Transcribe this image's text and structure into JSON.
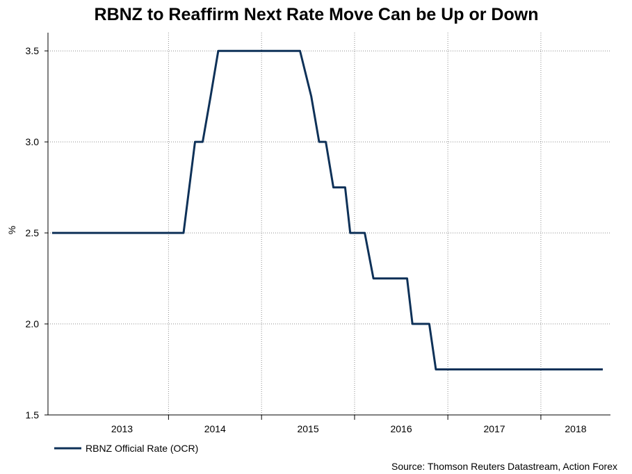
{
  "chart_data": {
    "type": "line",
    "title": "RBNZ to Reaffirm Next Rate Move Can be Up or Down",
    "ylabel": "%",
    "xlabel": "",
    "ylim": [
      1.5,
      3.6
    ],
    "xlim": [
      "2012-09-15",
      "2018-10-01"
    ],
    "y_ticks": [
      "1.5",
      "2.0",
      "2.5",
      "3.0",
      "3.5"
    ],
    "x_ticks": [
      "2013",
      "2014",
      "2015",
      "2016",
      "2017",
      "2018"
    ],
    "grid": true,
    "legend_position": "bottom-left",
    "source": "Source: Thomson Reuters Datastream, Action Forex",
    "series": [
      {
        "name": "RBNZ Official Rate (OCR)",
        "color": "#0e3158",
        "points": [
          [
            "2012-10-01",
            2.5
          ],
          [
            "2014-03-01",
            2.5
          ],
          [
            "2014-04-15",
            3.0
          ],
          [
            "2014-05-15",
            3.0
          ],
          [
            "2014-06-15",
            3.25
          ],
          [
            "2014-07-15",
            3.5
          ],
          [
            "2015-06-01",
            3.5
          ],
          [
            "2015-07-15",
            3.25
          ],
          [
            "2015-08-15",
            3.0
          ],
          [
            "2015-09-10",
            3.0
          ],
          [
            "2015-10-10",
            2.75
          ],
          [
            "2015-11-25",
            2.75
          ],
          [
            "2015-12-15",
            2.5
          ],
          [
            "2016-02-10",
            2.5
          ],
          [
            "2016-03-15",
            2.25
          ],
          [
            "2016-07-25",
            2.25
          ],
          [
            "2016-08-15",
            2.0
          ],
          [
            "2016-10-20",
            2.0
          ],
          [
            "2016-11-15",
            1.75
          ],
          [
            "2018-09-01",
            1.75
          ]
        ]
      }
    ]
  }
}
